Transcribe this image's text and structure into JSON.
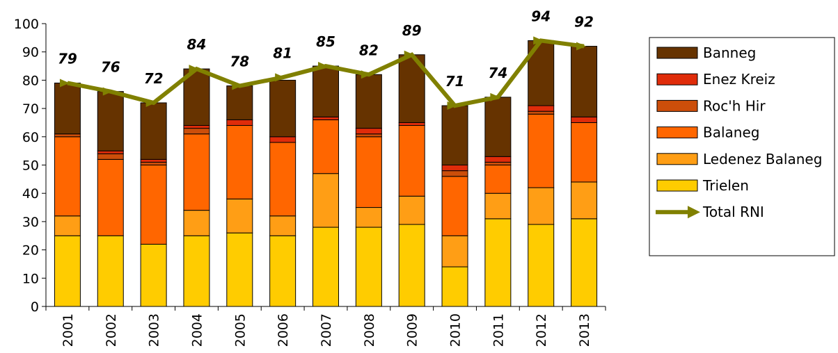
{
  "chart_data": {
    "type": "bar",
    "stacked": true,
    "categories": [
      "2001",
      "2002",
      "2003",
      "2004",
      "2005",
      "2006",
      "2007",
      "2008",
      "2009",
      "2010",
      "2011",
      "2012",
      "2013"
    ],
    "series": [
      {
        "name": "Trielen",
        "color": "#ffcc00",
        "values": [
          25,
          25,
          22,
          25,
          26,
          25,
          28,
          28,
          29,
          14,
          31,
          29,
          31
        ]
      },
      {
        "name": "Ledenez Balaneg",
        "color": "#ff9e15",
        "values": [
          7,
          0,
          0,
          9,
          12,
          7,
          19,
          7,
          10,
          11,
          9,
          13,
          13
        ]
      },
      {
        "name": "Balaneg",
        "color": "#ff6600",
        "values": [
          28,
          27,
          28,
          27,
          26,
          26,
          19,
          25,
          25,
          21,
          10,
          26,
          21
        ]
      },
      {
        "name": "Roc'h Hir",
        "color": "#cc4e0a",
        "values": [
          1,
          2,
          1,
          2,
          0,
          0,
          0,
          1,
          0,
          2,
          1,
          1,
          0
        ]
      },
      {
        "name": "Enez Kreiz",
        "color": "#e02c0a",
        "values": [
          0,
          1,
          1,
          1,
          2,
          2,
          1,
          2,
          1,
          2,
          2,
          2,
          2
        ]
      },
      {
        "name": "Banneg",
        "color": "#663300",
        "values": [
          18,
          21,
          20,
          20,
          12,
          20,
          18,
          19,
          24,
          21,
          21,
          23,
          25
        ]
      }
    ],
    "line_series": {
      "name": "Total RNI",
      "color": "#808000",
      "values": [
        79,
        76,
        72,
        84,
        78,
        81,
        85,
        82,
        89,
        71,
        74,
        94,
        92
      ]
    },
    "ylim": [
      0,
      100
    ],
    "yticks": [
      "0",
      "10",
      "20",
      "30",
      "40",
      "50",
      "60",
      "70",
      "80",
      "90",
      "100"
    ],
    "legend_order": [
      "Banneg",
      "Enez Kreiz",
      "Roc'h Hir",
      "Balaneg",
      "Ledenez Balaneg",
      "Trielen",
      "Total RNI"
    ],
    "legend_position": "right",
    "grid": false,
    "title": "",
    "xlabel": "",
    "ylabel": ""
  }
}
